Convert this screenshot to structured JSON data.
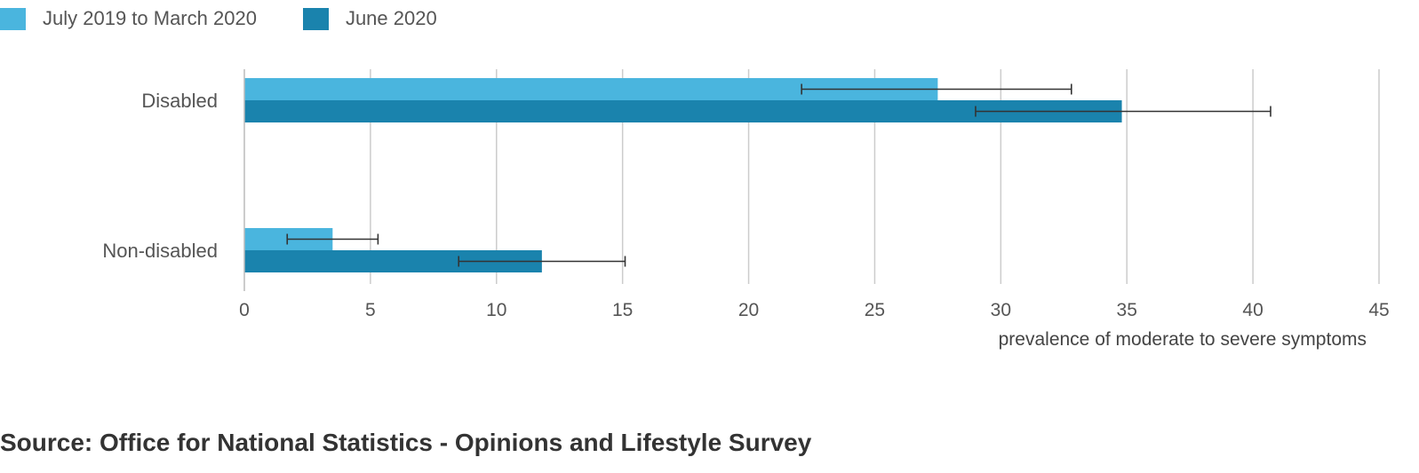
{
  "chart_data": {
    "type": "bar",
    "orientation": "horizontal",
    "categories": [
      "Disabled",
      "Non-disabled"
    ],
    "series": [
      {
        "name": "July 2019 to March 2020",
        "color": "#4ab5de",
        "values": [
          27.5,
          3.5
        ],
        "error_low": [
          22.1,
          1.7
        ],
        "error_high": [
          32.8,
          5.3
        ]
      },
      {
        "name": "June 2020",
        "color": "#1a83ad",
        "values": [
          34.8,
          11.8
        ],
        "error_low": [
          29.0,
          8.5
        ],
        "error_high": [
          40.7,
          15.1
        ]
      }
    ],
    "xlabel": "prevalence of moderate to severe symptoms",
    "xlim": [
      0,
      45
    ],
    "xticks": [
      0,
      5,
      10,
      15,
      20,
      25,
      30,
      35,
      40,
      45
    ],
    "grid": true,
    "legend": "top-left"
  },
  "source": "Source: Office for National Statistics - Opinions and Lifestyle Survey"
}
